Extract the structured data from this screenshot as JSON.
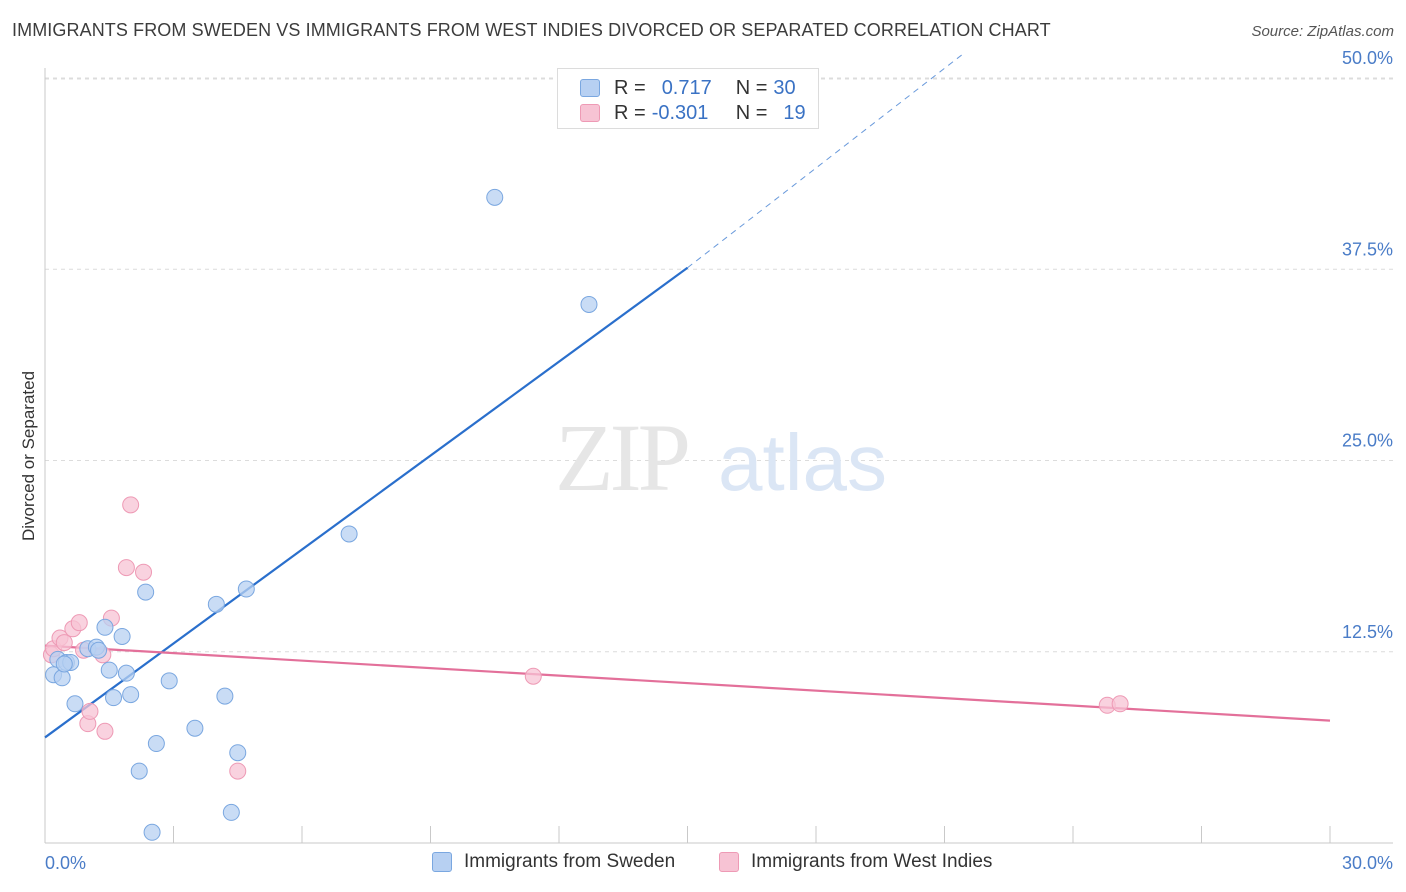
{
  "header": {
    "title": "IMMIGRANTS FROM SWEDEN VS IMMIGRANTS FROM WEST INDIES DIVORCED OR SEPARATED CORRELATION CHART",
    "source": "Source: ZipAtlas.com"
  },
  "watermark": {
    "zip": "ZIP",
    "atlas": "atlas"
  },
  "legend": {
    "rows": [
      {
        "r_label": "R =",
        "r_value": "0.717",
        "n_label": "N =",
        "n_value": "30"
      },
      {
        "r_label": "R =",
        "r_value": "-0.301",
        "n_label": "N =",
        "n_value": "19"
      }
    ]
  },
  "colors": {
    "sweden_fill": "#b7d0f2",
    "sweden_stroke": "#7aa7e0",
    "sweden_line": "#2a6fcc",
    "westindies_fill": "#f7c3d4",
    "westindies_stroke": "#ee9ab5",
    "westindies_line": "#e3709a",
    "grid": "#dcdcdc",
    "axis_text": "#4a7cc7"
  },
  "chart_data": {
    "type": "scatter",
    "title": "IMMIGRANTS FROM SWEDEN VS IMMIGRANTS FROM WEST INDIES DIVORCED OR SEPARATED CORRELATION CHART",
    "xlabel": "",
    "ylabel": "Divorced or Separated",
    "xlim": [
      0,
      30
    ],
    "ylim": [
      0,
      52
    ],
    "x_ticks": [
      "0.0%",
      "30.0%"
    ],
    "y_ticks": [
      {
        "value": 12.5,
        "label": "12.5%"
      },
      {
        "value": 25.0,
        "label": "25.0%"
      },
      {
        "value": 37.5,
        "label": "37.5%"
      },
      {
        "value": 50.0,
        "label": "50.0%"
      }
    ],
    "grid": true,
    "series": [
      {
        "name": "Immigrants from Sweden",
        "r": 0.717,
        "n": 30,
        "points": [
          [
            0.2,
            11.0
          ],
          [
            0.3,
            12.0
          ],
          [
            0.4,
            10.8
          ],
          [
            0.5,
            11.8
          ],
          [
            0.6,
            11.8
          ],
          [
            0.7,
            9.1
          ],
          [
            1.0,
            12.7
          ],
          [
            1.2,
            12.8
          ],
          [
            1.4,
            14.1
          ],
          [
            1.5,
            11.3
          ],
          [
            1.6,
            9.5
          ],
          [
            1.8,
            13.5
          ],
          [
            1.9,
            11.1
          ],
          [
            2.0,
            9.7
          ],
          [
            2.2,
            4.7
          ],
          [
            2.35,
            16.4
          ],
          [
            2.5,
            0.7
          ],
          [
            2.6,
            6.5
          ],
          [
            2.9,
            10.6
          ],
          [
            3.5,
            7.5
          ],
          [
            4.0,
            15.6
          ],
          [
            4.2,
            9.6
          ],
          [
            4.35,
            2.0
          ],
          [
            4.5,
            5.9
          ],
          [
            4.7,
            16.6
          ],
          [
            7.1,
            20.2
          ],
          [
            10.5,
            42.2
          ],
          [
            12.7,
            35.2
          ],
          [
            1.25,
            12.6
          ],
          [
            0.45,
            11.7
          ]
        ],
        "trend": {
          "x0": 0,
          "y0": 6.9,
          "x1": 15.0,
          "y1": 37.6,
          "dash_x1": 21.4,
          "dash_y1": 51.5
        }
      },
      {
        "name": "Immigrants from West Indies",
        "r": -0.301,
        "n": 19,
        "points": [
          [
            0.15,
            12.3
          ],
          [
            0.2,
            12.7
          ],
          [
            0.35,
            13.4
          ],
          [
            0.45,
            13.1
          ],
          [
            0.65,
            14.0
          ],
          [
            0.8,
            14.4
          ],
          [
            0.9,
            12.6
          ],
          [
            1.0,
            7.8
          ],
          [
            1.05,
            8.6
          ],
          [
            1.35,
            12.3
          ],
          [
            1.4,
            7.3
          ],
          [
            1.55,
            14.7
          ],
          [
            1.9,
            18.0
          ],
          [
            2.0,
            22.1
          ],
          [
            2.3,
            17.7
          ],
          [
            4.5,
            4.7
          ],
          [
            11.4,
            10.9
          ],
          [
            24.8,
            9.0
          ],
          [
            25.1,
            9.1
          ]
        ],
        "trend": {
          "x0": 0,
          "y0": 12.9,
          "x1": 30,
          "y1": 8.0
        }
      }
    ]
  },
  "bottom_legend": {
    "sweden": "Immigrants from Sweden",
    "westindies": "Immigrants from West Indies"
  }
}
